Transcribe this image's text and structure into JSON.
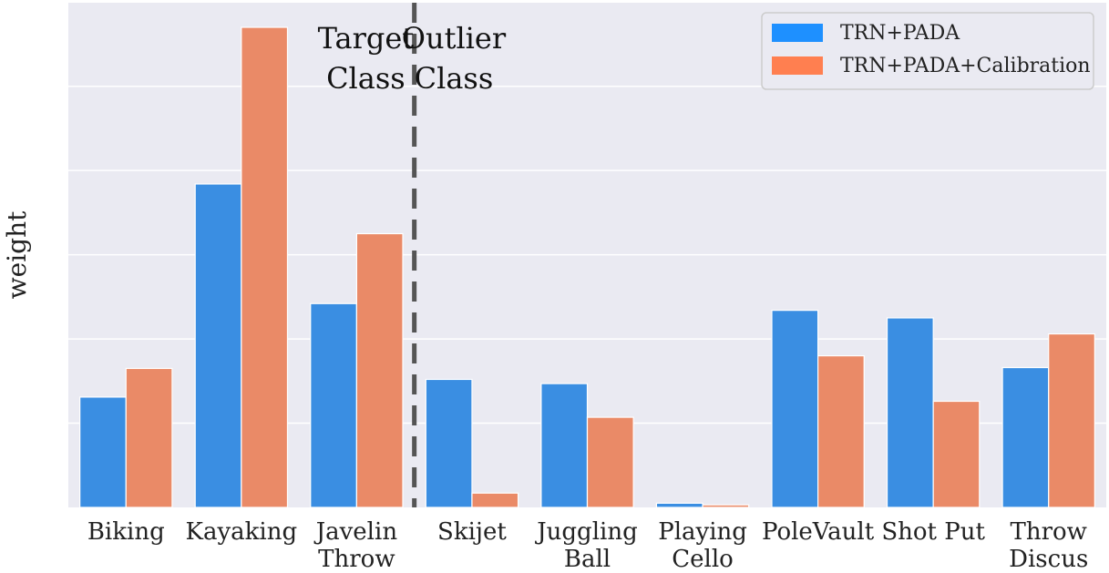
{
  "chart_data": {
    "type": "bar",
    "ylabel": "weight",
    "ylim": [
      0,
      5.7
    ],
    "grid": true,
    "legend_position": "top-right",
    "categories": [
      [
        "Biking"
      ],
      [
        "Kayaking"
      ],
      [
        "Javelin",
        "Throw"
      ],
      [
        "Skijet"
      ],
      [
        "Juggling",
        "Ball"
      ],
      [
        "Playing",
        "Cello"
      ],
      [
        "PoleVault"
      ],
      [
        "Shot Put"
      ],
      [
        "Throw",
        "Discus"
      ]
    ],
    "series": [
      {
        "name": "TRN+PADA",
        "color": "#3a8ee2",
        "legend_color": "#1e90ff",
        "values": [
          1.31,
          3.84,
          2.42,
          1.52,
          1.47,
          0.05,
          2.34,
          2.25,
          1.66
        ]
      },
      {
        "name": "TRN+PADA+Calibration",
        "color": "#ea8a67",
        "legend_color": "#ff7f50",
        "values": [
          1.65,
          5.7,
          3.25,
          0.17,
          1.07,
          0.03,
          1.8,
          1.26,
          2.06
        ]
      }
    ],
    "divider_after_index": 2,
    "annotations": {
      "left": [
        "Target",
        "Class"
      ],
      "right": [
        "Outlier",
        "Class"
      ]
    }
  }
}
